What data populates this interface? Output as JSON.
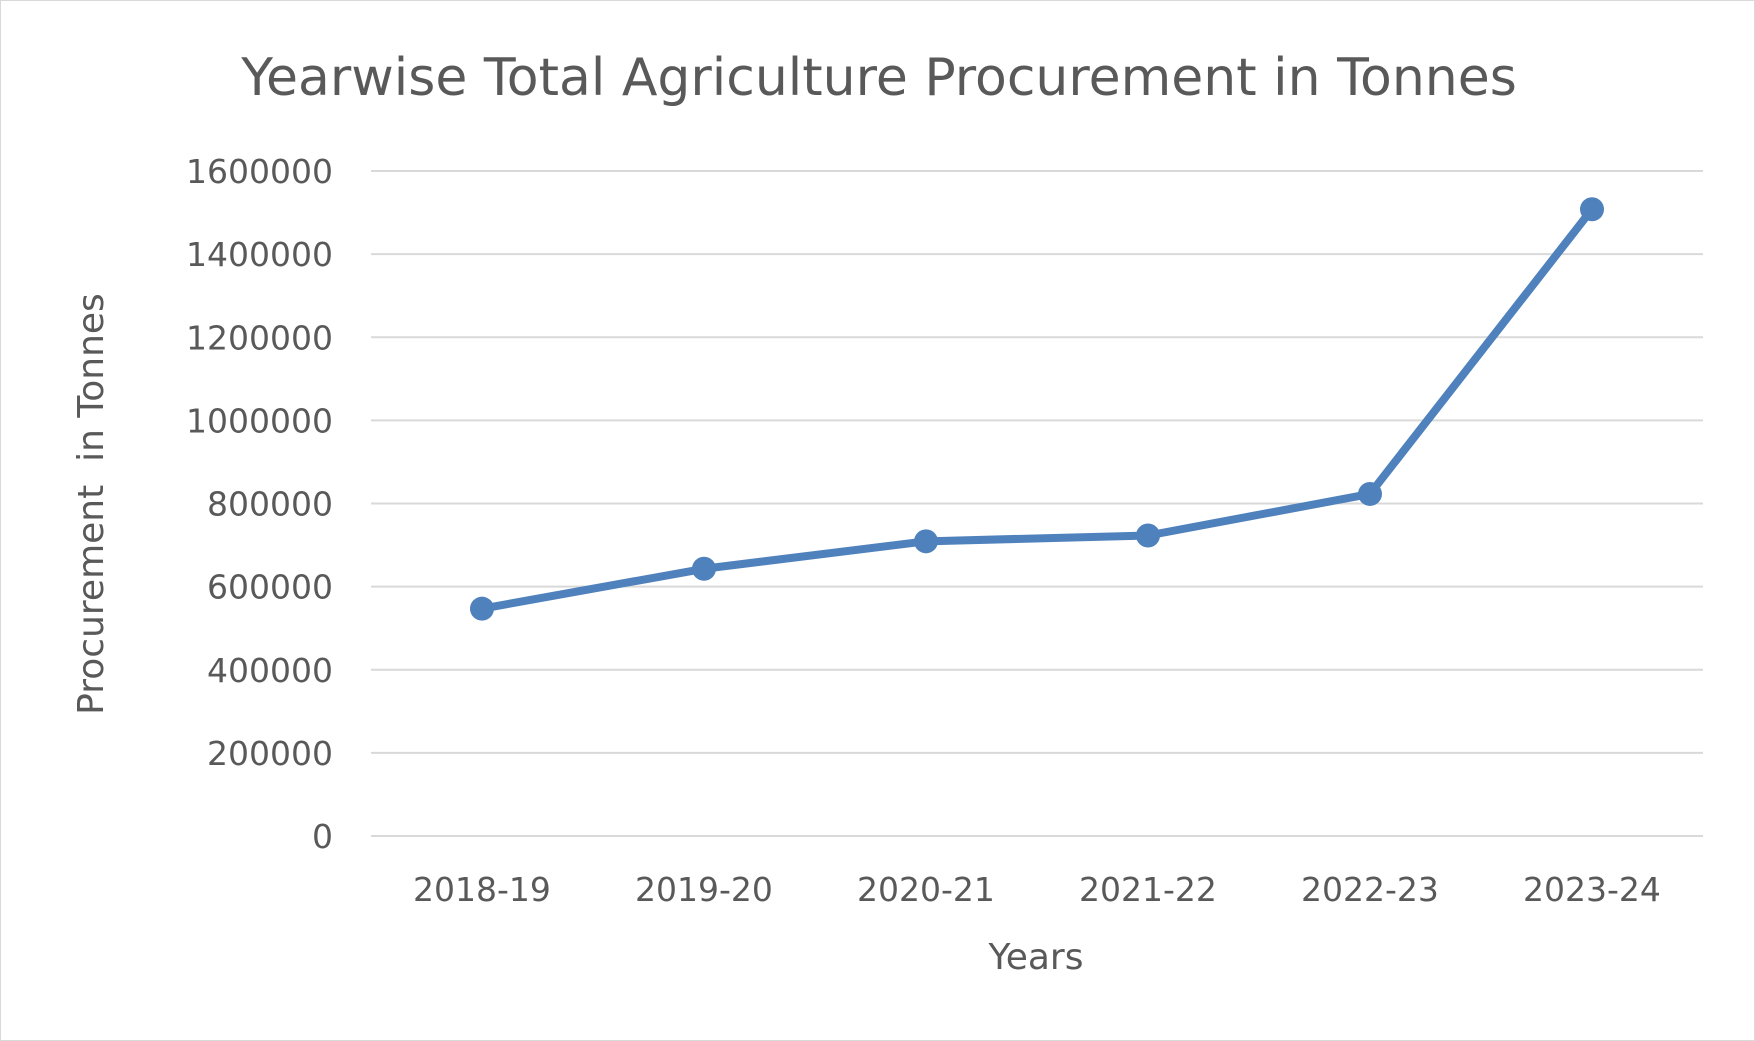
{
  "chart_data": {
    "type": "line",
    "title": "Yearwise Total Agriculture Procurement in Tonnes",
    "xlabel": "Years",
    "ylabel": "Procurement  in Tonnes",
    "categories": [
      "2018-19",
      "2019-20",
      "2020-21",
      "2021-22",
      "2022-23",
      "2023-24"
    ],
    "series": [
      {
        "values": [
          547000,
          643000,
          709000,
          723000,
          823000,
          1508000
        ],
        "color": "#4f81bd"
      }
    ],
    "ylim": [
      0,
      1600000
    ],
    "yticks": [
      "0",
      "200000",
      "400000",
      "600000",
      "800000",
      "1000000",
      "1200000",
      "1400000",
      "1600000"
    ],
    "grid": true,
    "legend": "none"
  }
}
